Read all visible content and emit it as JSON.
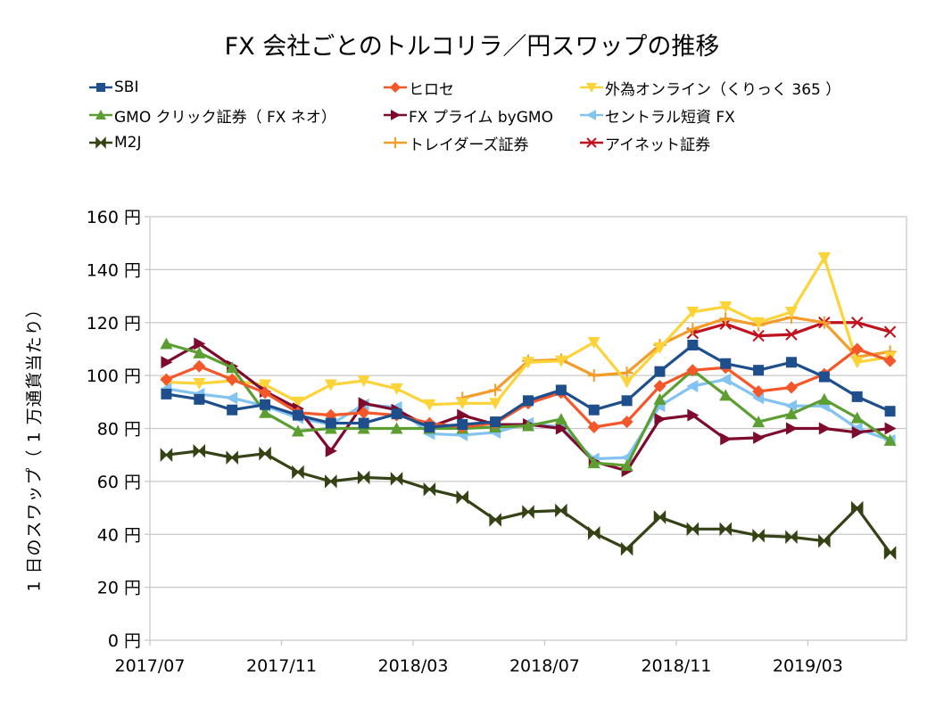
{
  "chart_data": {
    "type": "line",
    "title": "FX 会社ごとのトルコリラ／円スワップの推移",
    "xlabel": "",
    "ylabel": "1 日のスワップ（ 1 万通貨当たり）",
    "ylim": [
      0,
      160
    ],
    "y_ticks": [
      0,
      20,
      40,
      60,
      80,
      100,
      120,
      140,
      160
    ],
    "y_tick_suffix": " 円",
    "y_tick_labels": [
      "0 円",
      "20 円",
      "40 円",
      "60 円",
      "80 円",
      "100 円",
      "120 円",
      "140 円",
      "160 円"
    ],
    "grid": true,
    "legend_position": "top",
    "x": [
      "2017/07",
      "2017/08",
      "2017/09",
      "2017/10",
      "2017/11",
      "2017/12",
      "2018/01",
      "2018/02",
      "2018/03",
      "2018/04",
      "2018/05",
      "2018/06",
      "2018/07",
      "2018/08",
      "2018/09",
      "2018/10",
      "2018/11",
      "2018/12",
      "2019/01",
      "2019/02",
      "2019/03",
      "2019/04",
      "2019/05"
    ],
    "x_tick_labels": [
      "2017/07",
      "2017/11",
      "2018/03",
      "2018/07",
      "2018/11",
      "2019/03"
    ],
    "series": [
      {
        "name": "SBI",
        "color": "#1f4e8c",
        "marker": "square",
        "values": [
          93,
          91,
          87,
          89,
          85,
          82,
          82,
          85.5,
          80.5,
          81.5,
          82.5,
          90.5,
          94.5,
          87,
          90.5,
          101.5,
          111.5,
          104.5,
          102,
          105,
          99.5,
          92,
          86.5
        ]
      },
      {
        "name": "ヒロセ",
        "color": "#f4572a",
        "marker": "diamond",
        "values": [
          98.5,
          103.5,
          98.5,
          93.5,
          86,
          85,
          86,
          85,
          82,
          80.5,
          82,
          89.5,
          93.5,
          80.5,
          82.5,
          96,
          102,
          103,
          94,
          95.5,
          100.5,
          110,
          105.5
        ]
      },
      {
        "name": "外為オンライン（くりっく 365 ）",
        "color": "#fdd33a",
        "marker": "triangle-down",
        "values": [
          97.5,
          97,
          98,
          96.5,
          90,
          96.5,
          98,
          95,
          89,
          89.5,
          89.5,
          105,
          105.5,
          112.5,
          97.5,
          110.5,
          124,
          126,
          120,
          124,
          144.5,
          105,
          107
        ]
      },
      {
        "name": "GMO クリック証券（ FX ネオ）",
        "color": "#5c9e31",
        "marker": "triangle-up",
        "values": [
          112,
          108.5,
          103,
          86,
          79,
          80,
          80,
          80,
          80,
          80,
          80.5,
          81,
          83.5,
          67,
          66,
          91,
          102,
          92.5,
          82.5,
          85.5,
          91,
          84,
          75.5
        ]
      },
      {
        "name": "FX プライム byGMO",
        "color": "#7e0b2e",
        "marker": "triangle-right",
        "values": [
          105,
          112,
          103.5,
          94,
          87.5,
          71.5,
          89.5,
          87,
          80.5,
          85,
          81.5,
          81.5,
          80,
          67.5,
          64,
          83.5,
          85,
          76,
          76.5,
          80,
          80,
          78.5,
          80
        ]
      },
      {
        "name": "セントラル短資 FX",
        "color": "#83c3f2",
        "marker": "triangle-left",
        "values": [
          95,
          93,
          91.5,
          88.5,
          84,
          81.5,
          89,
          88,
          78,
          77.5,
          78.5,
          82,
          80.5,
          68.5,
          69,
          88.5,
          96,
          98.5,
          91.5,
          88.5,
          88.5,
          80,
          75.5
        ]
      },
      {
        "name": "M2J",
        "color": "#344215",
        "marker": "bowtie",
        "values": [
          70,
          71.5,
          69,
          70.5,
          63.5,
          60,
          61.5,
          61,
          57,
          54,
          45.5,
          48.5,
          49,
          40.5,
          34.5,
          46.5,
          42,
          42,
          39.5,
          39,
          37.5,
          50,
          33
        ]
      },
      {
        "name": "トレイダーズ証券",
        "color": "#f39c28",
        "marker": "plus",
        "values": [
          null,
          null,
          null,
          null,
          null,
          null,
          null,
          null,
          null,
          91.5,
          94.5,
          105.5,
          106,
          100,
          101,
          111.5,
          117.5,
          121.5,
          119,
          122,
          120,
          107,
          109
        ]
      },
      {
        "name": "アイネット証券",
        "color": "#c0111f",
        "marker": "x",
        "values": [
          null,
          null,
          null,
          null,
          null,
          null,
          null,
          null,
          null,
          null,
          null,
          null,
          null,
          null,
          null,
          null,
          116,
          119.5,
          115,
          115.5,
          120,
          120,
          116.5
        ]
      }
    ]
  }
}
